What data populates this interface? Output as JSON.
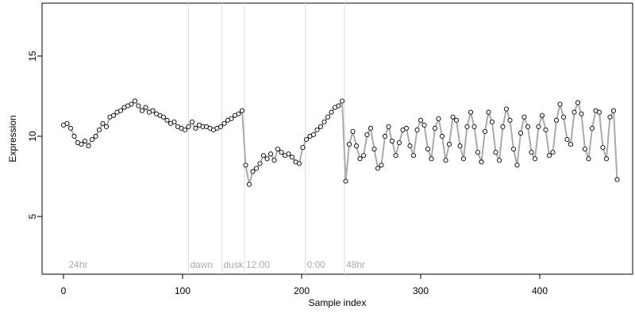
{
  "chart_data": {
    "type": "scatter",
    "xlabel": "Sample index",
    "ylabel": "Expression",
    "xlim": [
      -18,
      478
    ],
    "ylim": [
      1.4,
      18.3
    ],
    "xticks": [
      0,
      100,
      200,
      300,
      400
    ],
    "yticks": [
      5,
      10,
      15
    ],
    "point_fill": "#ffffff",
    "point_stroke": "#000000",
    "line_color": "#aaaaaa",
    "vline_color": "#dddddd",
    "vlines": [
      105,
      133,
      152,
      203,
      236
    ],
    "annotations": [
      {
        "x": 3,
        "label": "24hr"
      },
      {
        "x": 105,
        "label": "dawn"
      },
      {
        "x": 133,
        "label": "dusk"
      },
      {
        "x": 152,
        "label": "12:00"
      },
      {
        "x": 203,
        "label": "0:00"
      },
      {
        "x": 236,
        "label": "48hr"
      }
    ],
    "x": [
      0,
      3,
      6,
      9,
      12,
      15,
      18,
      21,
      24,
      27,
      30,
      33,
      36,
      39,
      42,
      45,
      48,
      51,
      54,
      57,
      60,
      63,
      66,
      69,
      72,
      75,
      78,
      81,
      84,
      87,
      90,
      93,
      96,
      99,
      102,
      105,
      108,
      111,
      114,
      117,
      120,
      123,
      126,
      129,
      132,
      135,
      138,
      141,
      144,
      147,
      150,
      153,
      156,
      159,
      162,
      165,
      168,
      171,
      174,
      177,
      180,
      183,
      186,
      189,
      192,
      195,
      198,
      201,
      204,
      207,
      210,
      213,
      216,
      219,
      222,
      225,
      228,
      231,
      234,
      237,
      240,
      243,
      246,
      249,
      252,
      255,
      258,
      261,
      264,
      267,
      270,
      273,
      276,
      279,
      282,
      285,
      288,
      291,
      294,
      297,
      300,
      303,
      306,
      309,
      312,
      315,
      318,
      321,
      324,
      327,
      330,
      333,
      336,
      339,
      342,
      345,
      348,
      351,
      354,
      357,
      360,
      363,
      366,
      369,
      372,
      375,
      378,
      381,
      384,
      387,
      390,
      393,
      396,
      399,
      402,
      405,
      408,
      411,
      414,
      417,
      420,
      423,
      426,
      429,
      432,
      435,
      438,
      441,
      444,
      447,
      450,
      453,
      456,
      459,
      462,
      465
    ],
    "values": [
      10.7,
      10.8,
      10.5,
      10.0,
      9.6,
      9.5,
      9.7,
      9.4,
      9.8,
      10.0,
      10.4,
      10.8,
      10.6,
      11.2,
      11.3,
      11.5,
      11.6,
      11.8,
      11.9,
      12.0,
      12.2,
      11.9,
      11.6,
      11.8,
      11.5,
      11.6,
      11.4,
      11.3,
      11.2,
      11.0,
      10.8,
      10.9,
      10.6,
      10.5,
      10.4,
      10.6,
      10.9,
      10.5,
      10.7,
      10.6,
      10.6,
      10.5,
      10.4,
      10.5,
      10.6,
      10.8,
      11.0,
      11.1,
      11.3,
      11.4,
      11.6,
      8.2,
      7.0,
      7.8,
      8.0,
      8.3,
      8.8,
      8.6,
      8.9,
      8.5,
      9.2,
      9.0,
      8.8,
      8.9,
      8.7,
      8.4,
      8.3,
      9.3,
      9.8,
      10.0,
      10.1,
      10.4,
      10.6,
      10.9,
      11.2,
      11.5,
      11.8,
      11.9,
      12.2,
      7.2,
      9.5,
      10.3,
      9.4,
      8.6,
      8.8,
      10.1,
      10.5,
      9.2,
      8.0,
      8.2,
      10.0,
      10.6,
      9.7,
      8.8,
      9.6,
      10.4,
      10.5,
      9.4,
      8.8,
      10.4,
      11.0,
      10.7,
      9.2,
      8.6,
      10.5,
      11.1,
      10.0,
      8.5,
      9.5,
      11.2,
      11.0,
      9.4,
      8.6,
      10.6,
      11.5,
      10.6,
      9.0,
      8.4,
      10.3,
      11.5,
      10.9,
      9.0,
      8.5,
      10.6,
      11.7,
      11.0,
      9.2,
      8.2,
      10.2,
      11.2,
      10.6,
      9.0,
      8.6,
      10.6,
      11.3,
      10.4,
      8.8,
      9.0,
      11.0,
      12.0,
      11.2,
      9.8,
      9.5,
      11.5,
      12.1,
      11.4,
      9.2,
      8.6,
      10.5,
      11.6,
      11.5,
      9.3,
      8.6,
      11.2,
      11.6,
      7.3
    ]
  }
}
